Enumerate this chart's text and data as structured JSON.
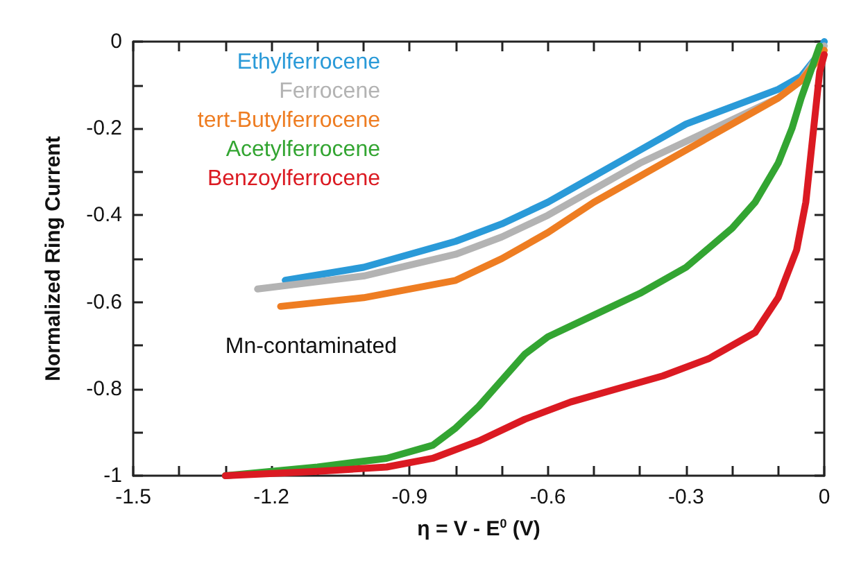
{
  "chart_data": {
    "type": "line",
    "xlabel": "η = V - E$^{0}$ (V)",
    "ylabel": "Normalized Ring Current",
    "xlim": [
      -1.5,
      0
    ],
    "ylim": [
      -1,
      0
    ],
    "xticks": [
      -1.5,
      {
        "value": -1.4,
        "label": null
      },
      {
        "value": -1.3,
        "label": null
      },
      -1.2,
      {
        "value": -1.1,
        "label": null
      },
      {
        "value": -1.0,
        "label": null
      },
      -0.9,
      {
        "value": -0.8,
        "label": null
      },
      {
        "value": -0.7,
        "label": null
      },
      -0.6,
      {
        "value": -0.5,
        "label": null
      },
      {
        "value": -0.4,
        "label": null
      },
      -0.3,
      {
        "value": -0.2,
        "label": null
      },
      {
        "value": -0.1,
        "label": null
      },
      0
    ],
    "yticks": [
      -1,
      {
        "value": -0.9,
        "label": null
      },
      -0.8,
      {
        "value": -0.7,
        "label": null
      },
      -0.6,
      {
        "value": -0.5,
        "label": null
      },
      -0.4,
      {
        "value": -0.3,
        "label": null
      },
      -0.2,
      {
        "value": -0.1,
        "label": null
      },
      0
    ],
    "grid": false,
    "legend": "top left",
    "marker": "none",
    "line_style": "solid",
    "annotations": [
      "Mn-contaminated"
    ],
    "series": [
      {
        "name": "Ethylferrocene",
        "color": "#2a9ad8",
        "x": [
          -1.17,
          -1.0,
          -0.8,
          -0.7,
          -0.6,
          -0.5,
          -0.4,
          -0.3,
          -0.2,
          -0.1,
          -0.05,
          -0.02,
          0
        ],
        "values": [
          -0.55,
          -0.52,
          -0.46,
          -0.42,
          -0.37,
          -0.31,
          -0.25,
          -0.19,
          -0.15,
          -0.11,
          -0.08,
          -0.04,
          0
        ]
      },
      {
        "name": "Ferrocene",
        "color": "#b3b3b3",
        "x": [
          -1.23,
          -1.0,
          -0.8,
          -0.7,
          -0.6,
          -0.5,
          -0.4,
          -0.3,
          -0.2,
          -0.1,
          -0.05,
          0
        ],
        "values": [
          -0.57,
          -0.54,
          -0.49,
          -0.45,
          -0.4,
          -0.34,
          -0.28,
          -0.23,
          -0.18,
          -0.13,
          -0.09,
          -0.01
        ]
      },
      {
        "name": "tert-Butylferrocene",
        "color": "#ee7d22",
        "x": [
          -1.18,
          -1.0,
          -0.8,
          -0.7,
          -0.6,
          -0.5,
          -0.4,
          -0.3,
          -0.2,
          -0.1,
          -0.05,
          -0.02,
          0
        ],
        "values": [
          -0.61,
          -0.59,
          -0.55,
          -0.5,
          -0.44,
          -0.37,
          -0.31,
          -0.25,
          -0.19,
          -0.13,
          -0.09,
          -0.05,
          -0.02
        ]
      },
      {
        "name": "Acetylferrocene",
        "color": "#33a532",
        "x": [
          -1.3,
          -1.1,
          -0.95,
          -0.85,
          -0.8,
          -0.75,
          -0.7,
          -0.65,
          -0.6,
          -0.5,
          -0.4,
          -0.3,
          -0.2,
          -0.15,
          -0.1,
          -0.07,
          -0.05,
          -0.03,
          -0.01
        ],
        "values": [
          -1.0,
          -0.98,
          -0.96,
          -0.93,
          -0.89,
          -0.84,
          -0.78,
          -0.72,
          -0.68,
          -0.63,
          -0.58,
          -0.52,
          -0.43,
          -0.37,
          -0.28,
          -0.2,
          -0.13,
          -0.07,
          -0.01
        ]
      },
      {
        "name": "Benzoylferrocene",
        "color": "#db1a22",
        "x": [
          -1.3,
          -1.1,
          -0.95,
          -0.85,
          -0.75,
          -0.65,
          -0.55,
          -0.45,
          -0.35,
          -0.25,
          -0.15,
          -0.1,
          -0.06,
          -0.04,
          -0.03,
          -0.02,
          -0.01,
          0
        ],
        "values": [
          -1.0,
          -0.99,
          -0.98,
          -0.96,
          -0.92,
          -0.87,
          -0.83,
          -0.8,
          -0.77,
          -0.73,
          -0.67,
          -0.59,
          -0.48,
          -0.37,
          -0.27,
          -0.17,
          -0.07,
          -0.03
        ]
      }
    ]
  }
}
